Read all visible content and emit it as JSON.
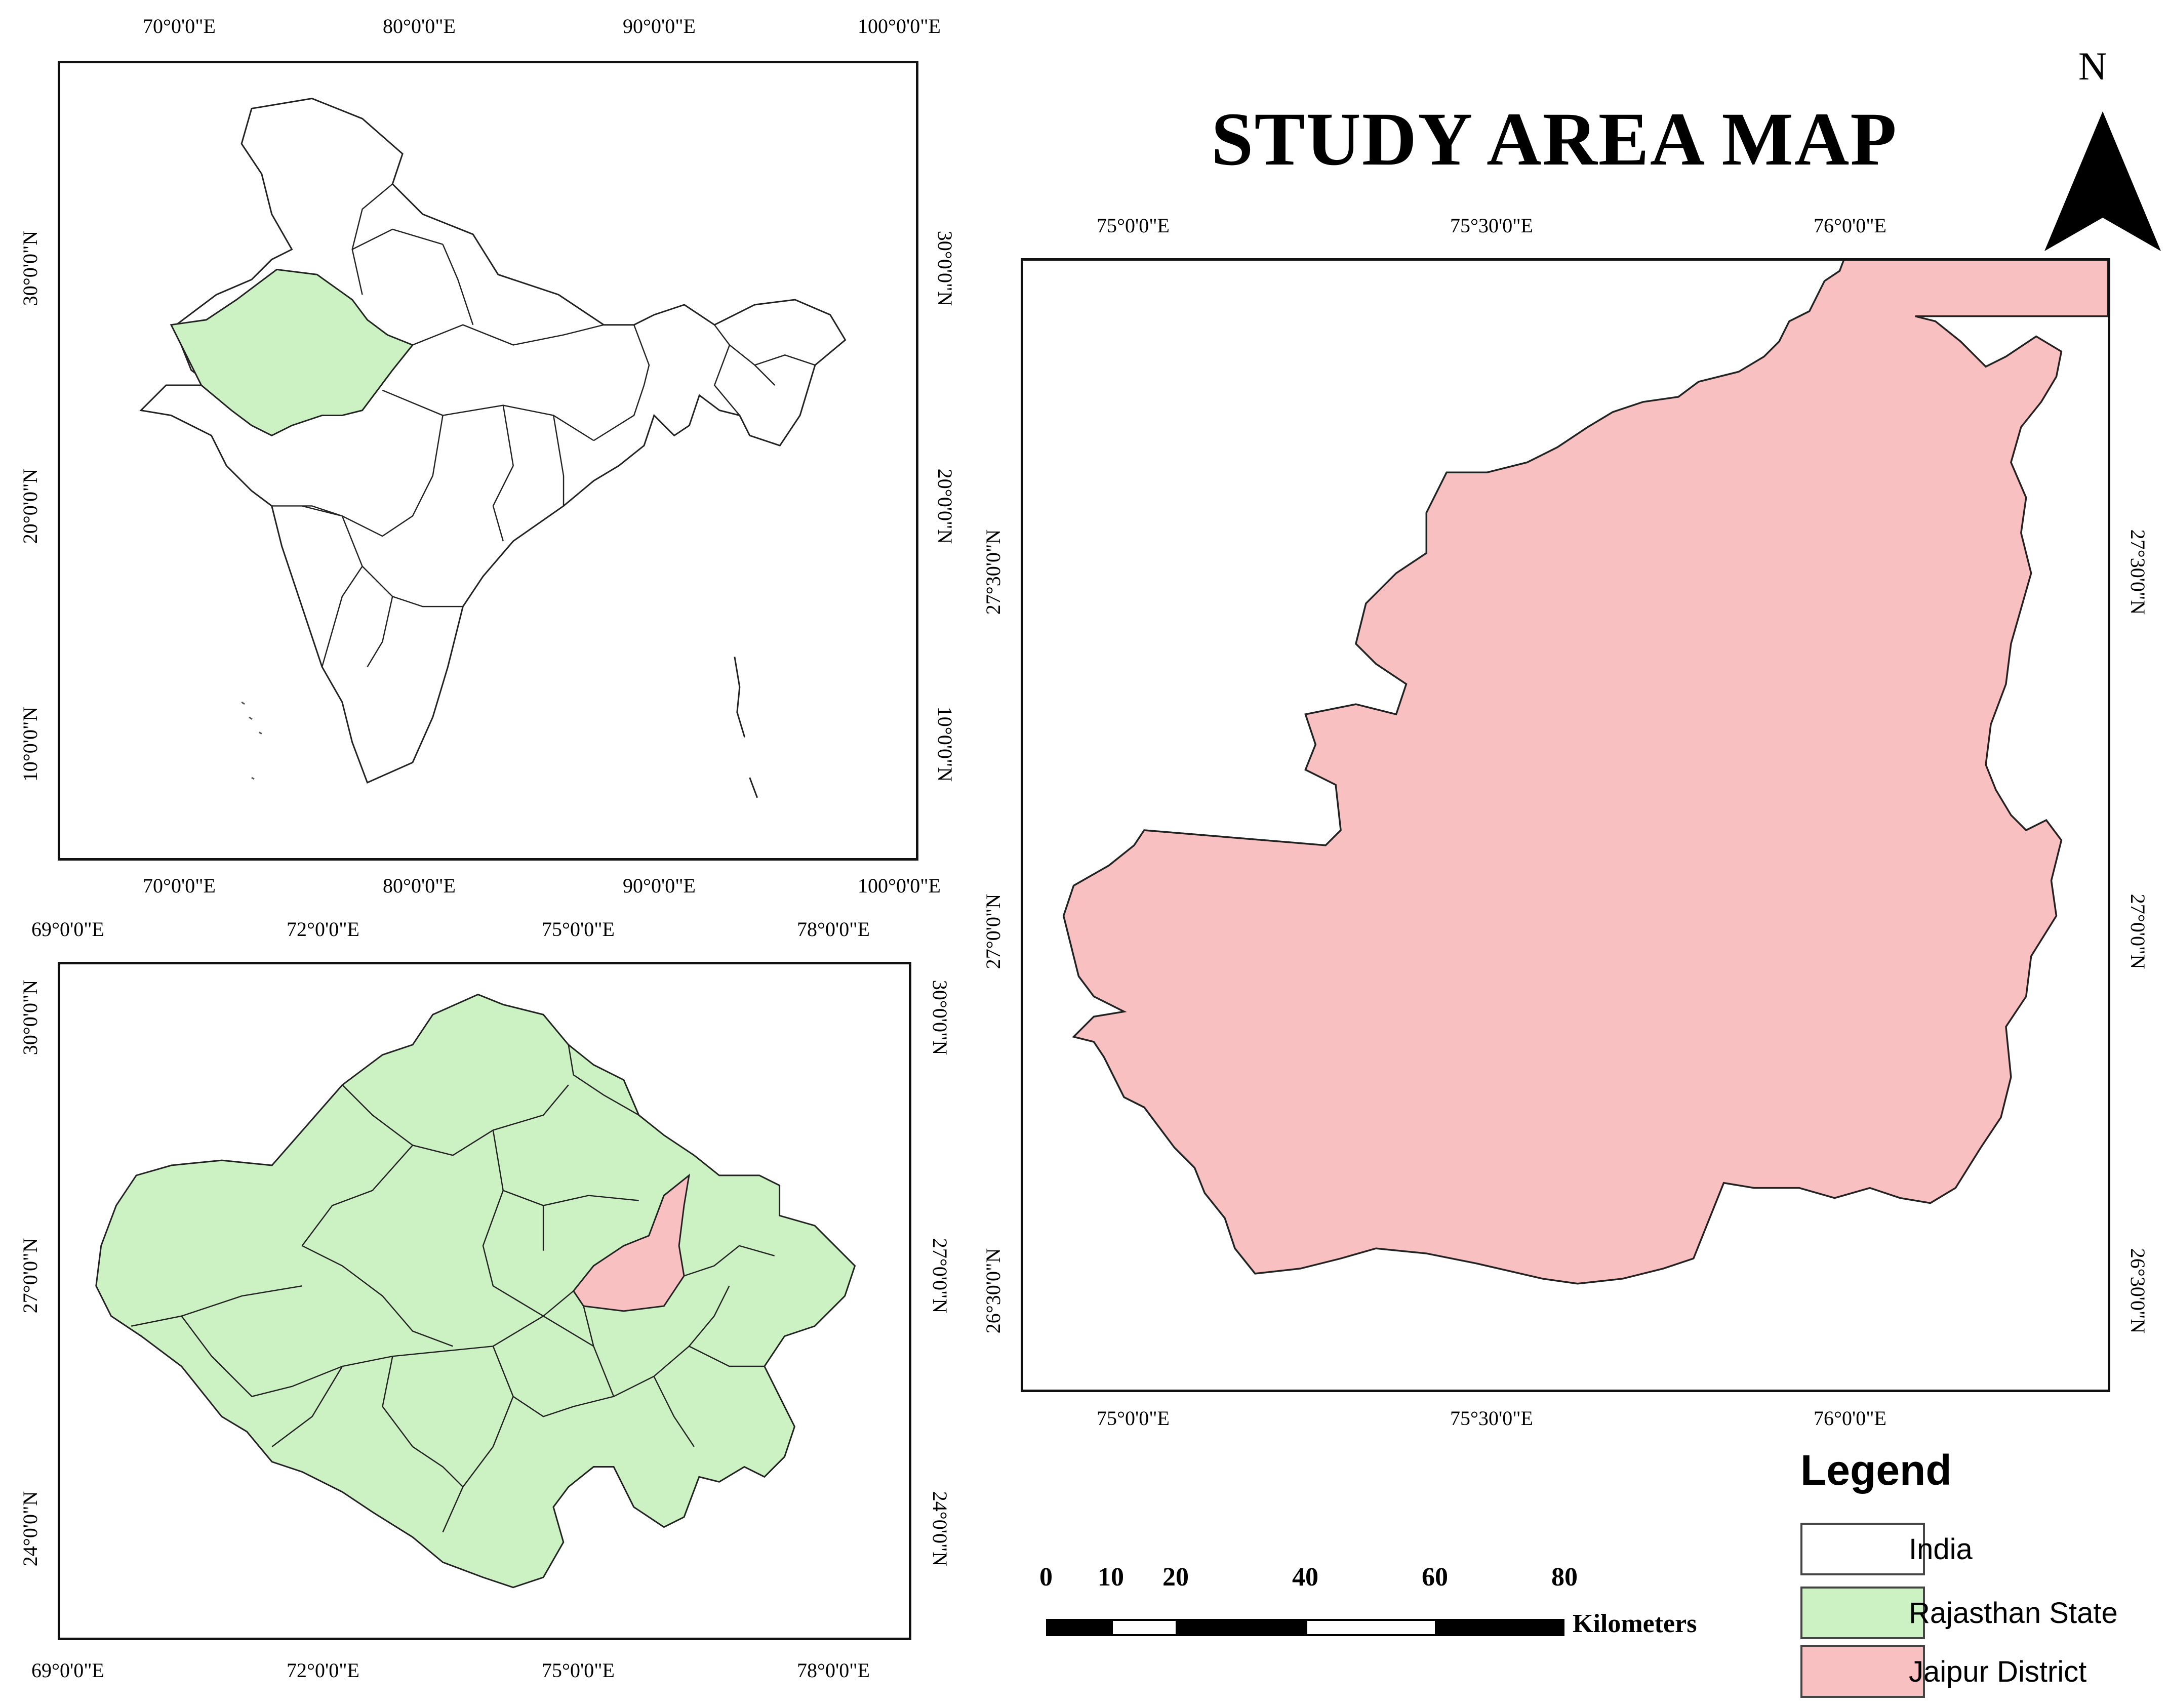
{
  "title": "STUDY AREA MAP",
  "north_arrow": {
    "label": "N"
  },
  "colors": {
    "india": "#ffffff",
    "rajasthan": "#ccf2c4",
    "jaipur": "#f8c0c0",
    "outline": "#222222"
  },
  "india_map": {
    "lon_ticks": [
      "70°0'0\"E",
      "80°0'0\"E",
      "90°0'0\"E",
      "100°0'0\"E"
    ],
    "lat_ticks": [
      "30°0'0\"N",
      "20°0'0\"N",
      "10°0'0\"N"
    ]
  },
  "rajasthan_map": {
    "lon_ticks": [
      "69°0'0\"E",
      "72°0'0\"E",
      "75°0'0\"E",
      "78°0'0\"E"
    ],
    "lat_ticks": [
      "30°0'0\"N",
      "27°0'0\"N",
      "24°0'0\"N"
    ]
  },
  "jaipur_map": {
    "lon_ticks": [
      "75°0'0\"E",
      "75°30'0\"E",
      "76°0'0\"E"
    ],
    "lat_ticks": [
      "27°30'0\"N",
      "27°0'0\"N",
      "26°30'0\"N"
    ]
  },
  "legend": {
    "title": "Legend",
    "items": [
      {
        "label": "India",
        "color": "#ffffff"
      },
      {
        "label": "Rajasthan State",
        "color": "#ccf2c4"
      },
      {
        "label": "Jaipur District",
        "color": "#f8c0c0"
      }
    ]
  },
  "scale_bar": {
    "labels": [
      "0",
      "10",
      "20",
      "40",
      "60",
      "80"
    ],
    "unit": "Kilometers"
  }
}
